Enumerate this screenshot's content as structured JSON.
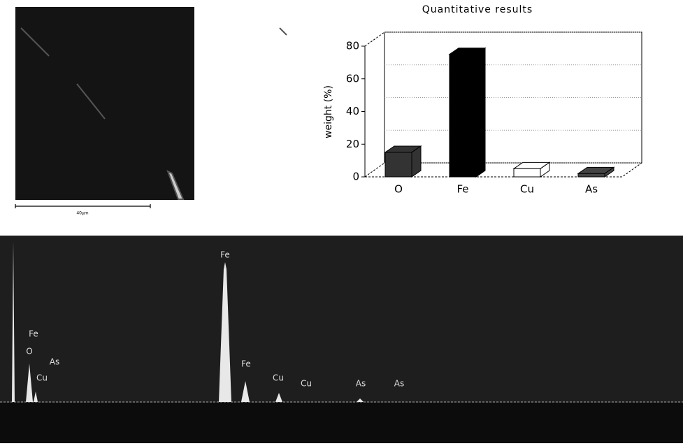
{
  "image": {
    "scale_label": "40µm"
  },
  "chart_data": [
    {
      "type": "bar3d",
      "title": "Quantitative results",
      "ylabel": "weight (%)",
      "categories": [
        "O",
        "Fe",
        "Cu",
        "As"
      ],
      "values": [
        15,
        75,
        5,
        2
      ],
      "colors": [
        "#333333",
        "#000000",
        "#ffffff",
        "#444444"
      ],
      "ylim": [
        0,
        80
      ],
      "yticks": [
        0,
        20,
        40,
        60,
        80
      ],
      "grid": true
    },
    {
      "type": "spectrum",
      "annotations": [
        "Fe",
        "Fe",
        "O",
        "As",
        "Cu",
        "Fe",
        "Cu",
        "Cu",
        "As",
        "As"
      ]
    }
  ]
}
